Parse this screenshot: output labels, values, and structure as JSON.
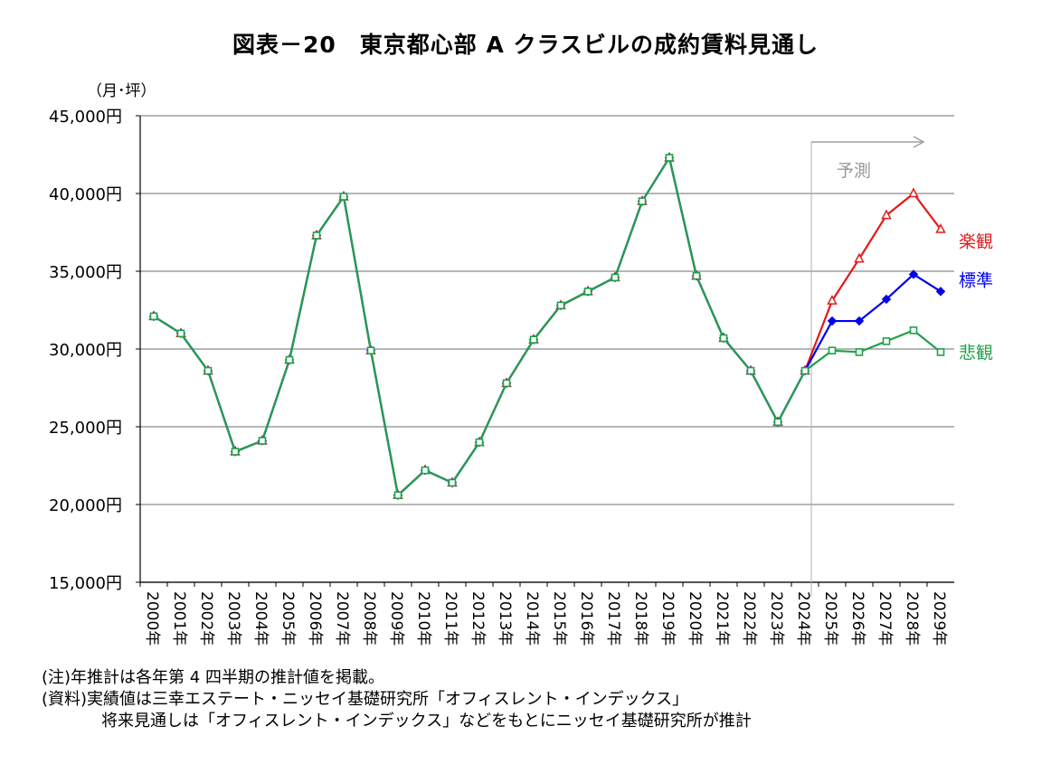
{
  "title": "図表－20　東京都心部 A クラスビルの成約賃料見通し",
  "unit_label": "（月･坪）",
  "forecast_label": "予測",
  "notes": {
    "note": "(注)年推計は各年第 4 四半期の推計値を掲載。",
    "source1": "(資料)実績値は三幸エステート・ニッセイ基礎研究所「オフィスレント・インデックス」",
    "source2": "将来見通しは「オフィスレント・インデックス」などをもとにニッセイ基礎研究所が推計"
  },
  "chart_data": {
    "type": "line",
    "title": "図表－20　東京都心部 A クラスビルの成約賃料見通し",
    "ylabel": "（月･坪）",
    "ylim": [
      15000,
      45000
    ],
    "y_ticks": [
      15000,
      20000,
      25000,
      30000,
      35000,
      40000,
      45000
    ],
    "y_tick_labels": [
      "15,000円",
      "20,000円",
      "25,000円",
      "30,000円",
      "35,000円",
      "40,000円",
      "45,000円"
    ],
    "grid": true,
    "categories": [
      "2000年",
      "2001年",
      "2002年",
      "2003年",
      "2004年",
      "2005年",
      "2006年",
      "2007年",
      "2008年",
      "2009年",
      "2010年",
      "2011年",
      "2012年",
      "2013年",
      "2014年",
      "2015年",
      "2016年",
      "2017年",
      "2018年",
      "2019年",
      "2020年",
      "2021年",
      "2022年",
      "2023年",
      "2024年",
      "2025年",
      "2026年",
      "2027年",
      "2028年",
      "2029年"
    ],
    "forecast_start": "2024年",
    "series": [
      {
        "name": "楽観",
        "color": "#e31a1c",
        "marker": "triangle",
        "values": [
          32100,
          31000,
          28600,
          23400,
          24100,
          29300,
          37300,
          39800,
          29900,
          20600,
          22200,
          21400,
          24000,
          27800,
          30600,
          32800,
          33700,
          34600,
          39500,
          42300,
          34700,
          30700,
          28600,
          25300,
          28600,
          33100,
          35800,
          38600,
          40000,
          37700
        ]
      },
      {
        "name": "標準",
        "color": "#0000ee",
        "marker": "diamond",
        "values": [
          32100,
          31000,
          28600,
          23400,
          24100,
          29300,
          37300,
          39800,
          29900,
          20600,
          22200,
          21400,
          24000,
          27800,
          30600,
          32800,
          33700,
          34600,
          39500,
          42300,
          34700,
          30700,
          28600,
          25300,
          28600,
          31800,
          31800,
          33200,
          34800,
          33700
        ]
      },
      {
        "name": "悲観",
        "color": "#21a04a",
        "marker": "square",
        "values": [
          32100,
          31000,
          28600,
          23400,
          24100,
          29300,
          37300,
          39800,
          29900,
          20600,
          22200,
          21400,
          24000,
          27800,
          30600,
          32800,
          33700,
          34600,
          39500,
          42300,
          34700,
          30700,
          28600,
          25300,
          28600,
          29900,
          29800,
          30500,
          31200,
          29800
        ]
      }
    ]
  }
}
